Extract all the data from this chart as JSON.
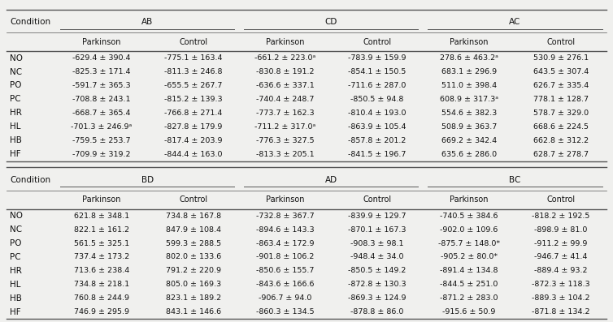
{
  "top_table": {
    "group_headers": [
      "AB",
      "CD",
      "AC"
    ],
    "conditions": [
      "NO",
      "NC",
      "PO",
      "PC",
      "HR",
      "HL",
      "HB",
      "HF"
    ],
    "data": [
      [
        [
          "-629.4 ± 390.4",
          "-775.1 ± 163.4"
        ],
        [
          "-825.3 ± 171.4",
          "-811.3 ± 246.8"
        ],
        [
          "-591.7 ± 365.3",
          "-655.5 ± 267.7"
        ],
        [
          "-708.8 ± 243.1",
          "-815.2 ± 139.3"
        ],
        [
          "-668.7 ± 365.4",
          "-766.8 ± 271.4"
        ],
        [
          "-701.3 ± 246.9ᵃ",
          "-827.8 ± 179.9"
        ],
        [
          "-759.5 ± 253.7",
          "-817.4 ± 203.9"
        ],
        [
          "-709.9 ± 319.2",
          "-844.4 ± 163.0"
        ]
      ],
      [
        [
          "-661.2 ± 223.0ᵃ",
          "-783.9 ± 159.9"
        ],
        [
          "-830.8 ± 191.2",
          "-854.1 ± 150.5"
        ],
        [
          "-636.6 ± 337.1",
          "-711.6 ± 287.0"
        ],
        [
          "-740.4 ± 248.7",
          "-850.5 ± 94.8"
        ],
        [
          "-773.7 ± 162.3",
          "-810.4 ± 193.0"
        ],
        [
          "-711.2 ± 317.0ᵃ",
          "-863.9 ± 105.4"
        ],
        [
          "-776.3 ± 327.5",
          "-857.8 ± 201.2"
        ],
        [
          "-813.3 ± 205.1",
          "-841.5 ± 196.7"
        ]
      ],
      [
        [
          "278.6 ± 463.2ᵃ",
          "530.9 ± 276.1"
        ],
        [
          "683.1 ± 296.9",
          "643.5 ± 307.4"
        ],
        [
          "511.0 ± 398.4",
          "626.7 ± 335.4"
        ],
        [
          "608.9 ± 317.3ᵃ",
          "778.1 ± 128.7"
        ],
        [
          "554.6 ± 382.3",
          "578.7 ± 329.0"
        ],
        [
          "508.9 ± 363.7",
          "668.6 ± 224.5"
        ],
        [
          "669.2 ± 342.4",
          "662.8 ± 312.2"
        ],
        [
          "635.6 ± 286.0",
          "628.7 ± 278.7"
        ]
      ]
    ]
  },
  "bottom_table": {
    "group_headers": [
      "BD",
      "AD",
      "BC"
    ],
    "conditions": [
      "NO",
      "NC",
      "PO",
      "PC",
      "HR",
      "HL",
      "HB",
      "HF"
    ],
    "data": [
      [
        [
          "621.8 ± 348.1",
          "734.8 ± 167.8"
        ],
        [
          "822.1 ± 161.2",
          "847.9 ± 108.4"
        ],
        [
          "561.5 ± 325.1",
          "599.3 ± 288.5"
        ],
        [
          "737.4 ± 173.2",
          "802.0 ± 133.6"
        ],
        [
          "713.6 ± 238.4",
          "791.2 ± 220.9"
        ],
        [
          "734.8 ± 218.1",
          "805.0 ± 169.3"
        ],
        [
          "760.8 ± 244.9",
          "823.1 ± 189.2"
        ],
        [
          "746.9 ± 295.9",
          "843.1 ± 146.6"
        ]
      ],
      [
        [
          "-732.8 ± 367.7",
          "-839.9 ± 129.7"
        ],
        [
          "-894.6 ± 143.3",
          "-870.1 ± 167.3"
        ],
        [
          "-863.4 ± 172.9",
          "-908.3 ± 98.1"
        ],
        [
          "-901.8 ± 106.2",
          "-948.4 ± 34.0"
        ],
        [
          "-850.6 ± 155.7",
          "-850.5 ± 149.2"
        ],
        [
          "-843.6 ± 166.6",
          "-872.8 ± 130.3"
        ],
        [
          "-906.7 ± 94.0",
          "-869.3 ± 124.9"
        ],
        [
          "-860.3 ± 134.5",
          "-878.8 ± 86.0"
        ]
      ],
      [
        [
          "-740.5 ± 384.6",
          "-818.2 ± 192.5"
        ],
        [
          "-902.0 ± 109.6",
          "-898.9 ± 81.0"
        ],
        [
          "-875.7 ± 148.0*",
          "-911.2 ± 99.9"
        ],
        [
          "-905.2 ± 80.0*",
          "-946.7 ± 41.4"
        ],
        [
          "-891.4 ± 134.8",
          "-889.4 ± 93.2"
        ],
        [
          "-844.5 ± 251.0",
          "-872.3 ± 118.3"
        ],
        [
          "-871.2 ± 283.0",
          "-889.3 ± 104.2"
        ],
        [
          "-915.6 ± 50.9",
          "-871.8 ± 134.2"
        ]
      ]
    ]
  },
  "bg_color": "#f0f0ee",
  "text_color": "#111111",
  "line_color": "#555555",
  "fontsize_group": 7.5,
  "fontsize_sub": 7.0,
  "fontsize_data": 6.8,
  "fontsize_cond": 7.5
}
